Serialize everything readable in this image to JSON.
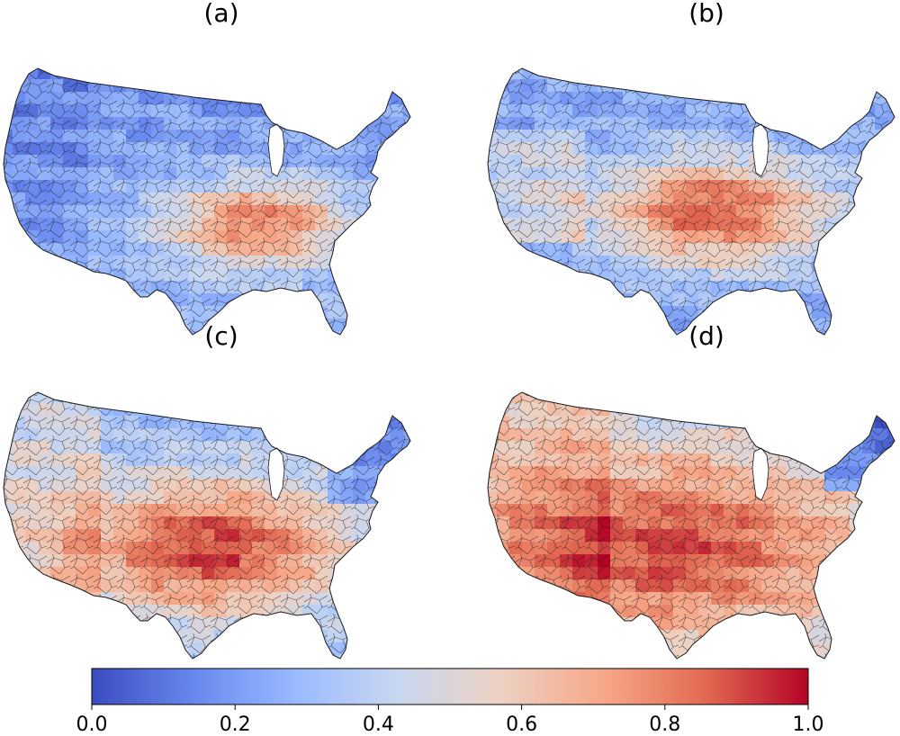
{
  "panels": [
    {
      "label": "(a)"
    },
    {
      "label": "(b)"
    },
    {
      "label": "(c)"
    },
    {
      "label": "(d)"
    }
  ],
  "colorbar": {
    "colormap": "coolwarm",
    "stops": [
      "#3b4cc0",
      "#6788ee",
      "#9abbff",
      "#c9d7f0",
      "#edd1c2",
      "#f7a889",
      "#e26952",
      "#b40426"
    ],
    "range": [
      0,
      1
    ],
    "ticks": [
      "0.0",
      "0.2",
      "0.4",
      "0.6",
      "0.8",
      "1.0"
    ]
  },
  "colors": {
    "cell_border": "#1a1a1a",
    "lake_fill": "#ffffff"
  }
}
